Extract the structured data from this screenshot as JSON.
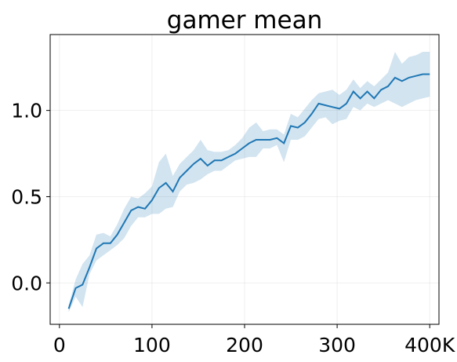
{
  "chart_data": {
    "type": "line",
    "title": "gamer mean",
    "xlabel": "",
    "ylabel": "",
    "xlim": [
      -10000,
      410000
    ],
    "ylim": [
      -0.24,
      1.44
    ],
    "grid": true,
    "x_ticks": [
      {
        "value": 0,
        "label": "0"
      },
      {
        "value": 100000,
        "label": "100"
      },
      {
        "value": 200000,
        "label": "200"
      },
      {
        "value": 300000,
        "label": "300"
      },
      {
        "value": 400000,
        "label": "400K"
      }
    ],
    "y_ticks": [
      {
        "value": 0.0,
        "label": "0.0"
      },
      {
        "value": 0.5,
        "label": "0.5"
      },
      {
        "value": 1.0,
        "label": "1.0"
      }
    ],
    "colors": {
      "line": "#1f77b4",
      "band": "#1f77b4"
    },
    "series": [
      {
        "x": [
          10000,
          17500,
          25000,
          32500,
          40000,
          47500,
          55000,
          62500,
          70000,
          77500,
          85000,
          92500,
          100000,
          107500,
          115000,
          122500,
          130000,
          137500,
          145000,
          152500,
          160000,
          167500,
          175000,
          182500,
          190000,
          197500,
          205000,
          212500,
          220000,
          227500,
          235000,
          242500,
          250000,
          257500,
          265000,
          272500,
          280000,
          287500,
          295000,
          302500,
          310000,
          317500,
          325000,
          332500,
          340000,
          347500,
          355000,
          362500,
          370000,
          377500,
          385000,
          392500,
          400000
        ],
        "y": [
          -0.15,
          -0.03,
          -0.01,
          0.09,
          0.2,
          0.23,
          0.23,
          0.28,
          0.35,
          0.42,
          0.44,
          0.43,
          0.48,
          0.55,
          0.58,
          0.53,
          0.61,
          0.65,
          0.69,
          0.72,
          0.68,
          0.71,
          0.71,
          0.73,
          0.75,
          0.78,
          0.81,
          0.83,
          0.83,
          0.83,
          0.84,
          0.81,
          0.91,
          0.9,
          0.93,
          0.98,
          1.04,
          1.03,
          1.02,
          1.01,
          1.04,
          1.11,
          1.07,
          1.11,
          1.07,
          1.12,
          1.14,
          1.19,
          1.17,
          1.19,
          1.2,
          1.21,
          1.21
        ],
        "upper": [
          -0.13,
          0.02,
          0.11,
          0.16,
          0.28,
          0.29,
          0.27,
          0.34,
          0.43,
          0.5,
          0.49,
          0.52,
          0.56,
          0.7,
          0.75,
          0.62,
          0.69,
          0.73,
          0.77,
          0.83,
          0.77,
          0.76,
          0.76,
          0.77,
          0.8,
          0.84,
          0.9,
          0.93,
          0.88,
          0.89,
          0.89,
          0.86,
          0.98,
          0.96,
          1.01,
          1.06,
          1.1,
          1.11,
          1.12,
          1.09,
          1.12,
          1.18,
          1.13,
          1.17,
          1.14,
          1.18,
          1.22,
          1.34,
          1.27,
          1.31,
          1.32,
          1.34,
          1.34
        ],
        "lower": [
          -0.17,
          -0.08,
          -0.14,
          0.05,
          0.13,
          0.16,
          0.19,
          0.22,
          0.26,
          0.33,
          0.38,
          0.38,
          0.4,
          0.4,
          0.43,
          0.44,
          0.53,
          0.57,
          0.58,
          0.6,
          0.63,
          0.65,
          0.65,
          0.68,
          0.71,
          0.72,
          0.73,
          0.73,
          0.78,
          0.78,
          0.8,
          0.7,
          0.83,
          0.83,
          0.85,
          0.9,
          0.95,
          0.96,
          0.92,
          0.94,
          0.95,
          1.02,
          1.0,
          1.04,
          1.02,
          1.04,
          1.06,
          1.04,
          1.02,
          1.04,
          1.06,
          1.07,
          1.08
        ]
      }
    ]
  }
}
